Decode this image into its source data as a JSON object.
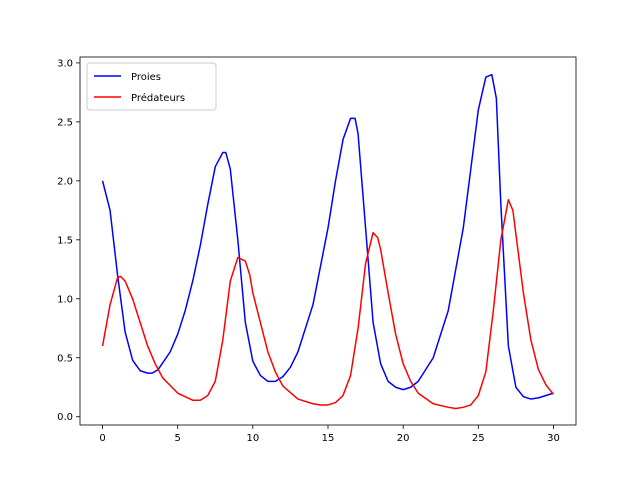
{
  "chart_data": {
    "type": "line",
    "title": "",
    "xlabel": "",
    "ylabel": "",
    "xlim": [
      -1.5,
      31.5
    ],
    "ylim": [
      -0.07,
      3.05
    ],
    "xticks": [
      0,
      5,
      10,
      15,
      20,
      25,
      30
    ],
    "yticks": [
      0.0,
      0.5,
      1.0,
      1.5,
      2.0,
      2.5,
      3.0
    ],
    "xtick_labels": [
      "0",
      "5",
      "10",
      "15",
      "20",
      "25",
      "30"
    ],
    "ytick_labels": [
      "0.0",
      "0.5",
      "1.0",
      "1.5",
      "2.0",
      "2.5",
      "3.0"
    ],
    "grid": false,
    "legend_position": "top-left",
    "series": [
      {
        "name": "Proies",
        "color": "#0000ff",
        "x": [
          0,
          0.5,
          1,
          1.5,
          2,
          2.5,
          3,
          3.3,
          3.7,
          4.5,
          5,
          5.5,
          6,
          6.5,
          7,
          7.5,
          8,
          8.2,
          8.5,
          9,
          9.5,
          10,
          10.5,
          11,
          11.5,
          12,
          12.5,
          13,
          14,
          15,
          15.5,
          16,
          16.5,
          16.8,
          17,
          17.5,
          18,
          18.5,
          19,
          19.5,
          20,
          20.5,
          21,
          22,
          23,
          24,
          24.5,
          25,
          25.5,
          25.9,
          26.2,
          26.5,
          27,
          27.5,
          28,
          28.5,
          29,
          29.5,
          30
        ],
        "y": [
          2.0,
          1.75,
          1.2,
          0.72,
          0.48,
          0.39,
          0.37,
          0.37,
          0.4,
          0.55,
          0.7,
          0.9,
          1.15,
          1.45,
          1.8,
          2.12,
          2.24,
          2.24,
          2.1,
          1.5,
          0.8,
          0.47,
          0.35,
          0.3,
          0.3,
          0.34,
          0.42,
          0.55,
          0.95,
          1.6,
          2.0,
          2.35,
          2.53,
          2.53,
          2.4,
          1.6,
          0.8,
          0.45,
          0.3,
          0.25,
          0.23,
          0.25,
          0.3,
          0.5,
          0.9,
          1.6,
          2.1,
          2.6,
          2.88,
          2.9,
          2.7,
          1.8,
          0.6,
          0.25,
          0.17,
          0.15,
          0.16,
          0.18,
          0.2
        ]
      },
      {
        "name": "Prédateurs",
        "color": "#ff0000",
        "x": [
          0,
          0.5,
          1,
          1.2,
          1.5,
          2,
          2.5,
          3,
          3.5,
          4,
          5,
          6,
          6.5,
          7,
          7.5,
          8,
          8.5,
          9,
          9.5,
          9.8,
          10,
          10.5,
          11,
          11.5,
          12,
          13,
          14,
          14.5,
          15,
          15.5,
          16,
          16.5,
          17,
          17.5,
          18,
          18.3,
          18.5,
          19,
          19.5,
          20,
          20.5,
          21,
          22,
          23,
          23.5,
          24,
          24.5,
          25,
          25.5,
          26,
          26.5,
          27,
          27.3,
          27.5,
          28,
          28.5,
          29,
          29.5,
          30
        ],
        "y": [
          0.6,
          0.95,
          1.18,
          1.19,
          1.15,
          1.0,
          0.8,
          0.6,
          0.45,
          0.33,
          0.2,
          0.14,
          0.14,
          0.18,
          0.3,
          0.65,
          1.15,
          1.35,
          1.32,
          1.2,
          1.05,
          0.8,
          0.55,
          0.38,
          0.26,
          0.15,
          0.11,
          0.1,
          0.1,
          0.12,
          0.18,
          0.35,
          0.75,
          1.3,
          1.56,
          1.52,
          1.42,
          1.05,
          0.7,
          0.45,
          0.3,
          0.2,
          0.11,
          0.08,
          0.07,
          0.08,
          0.1,
          0.18,
          0.38,
          0.9,
          1.5,
          1.84,
          1.75,
          1.55,
          1.05,
          0.65,
          0.4,
          0.27,
          0.19
        ]
      }
    ]
  }
}
